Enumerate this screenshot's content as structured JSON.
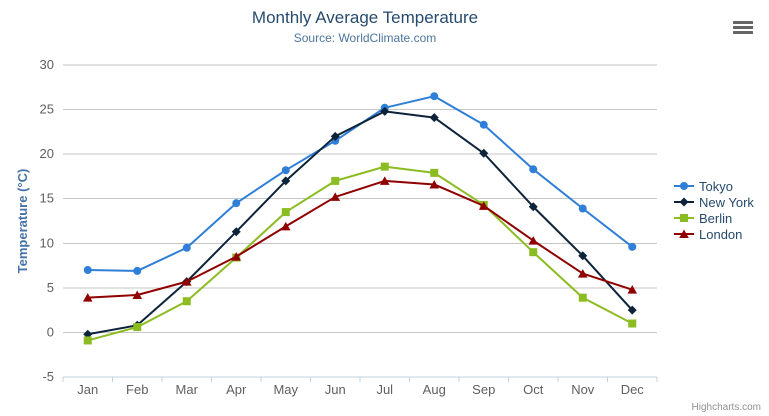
{
  "credits": {
    "label": "Highcharts.com"
  },
  "icons": {
    "export_menu": "hamburger-menu"
  },
  "colors": {
    "background": "#ffffff",
    "title": "#274b6d",
    "subtitle": "#4d759e",
    "axis_title": "#4572A7",
    "axis_labels": "#606060",
    "gridline": "#C6C6C6",
    "axis_line": "#C0D0E0",
    "legend_text": "#274b6d",
    "credits_text": "#909090",
    "menu_icon": "#666666"
  },
  "chart_data": {
    "type": "line",
    "title": "Monthly Average Temperature",
    "subtitle": "Source: WorldClimate.com",
    "categories": [
      "Jan",
      "Feb",
      "Mar",
      "Apr",
      "May",
      "Jun",
      "Jul",
      "Aug",
      "Sep",
      "Oct",
      "Nov",
      "Dec"
    ],
    "series": [
      {
        "name": "Tokyo",
        "color": "#2f7ed8",
        "marker": "circle",
        "values": [
          7.0,
          6.9,
          9.5,
          14.5,
          18.2,
          21.5,
          25.2,
          26.5,
          23.3,
          18.3,
          13.9,
          9.6
        ]
      },
      {
        "name": "New York",
        "color": "#0d233a",
        "marker": "diamond",
        "values": [
          -0.2,
          0.8,
          5.7,
          11.3,
          17.0,
          22.0,
          24.8,
          24.1,
          20.1,
          14.1,
          8.6,
          2.5
        ]
      },
      {
        "name": "Berlin",
        "color": "#8bbc21",
        "marker": "square",
        "values": [
          -0.9,
          0.6,
          3.5,
          8.4,
          13.5,
          17.0,
          18.6,
          17.9,
          14.3,
          9.0,
          3.9,
          1.0
        ]
      },
      {
        "name": "London",
        "color": "#910000",
        "marker": "triangle",
        "values": [
          3.9,
          4.2,
          5.7,
          8.5,
          11.9,
          15.2,
          17.0,
          16.6,
          14.2,
          10.3,
          6.6,
          4.8
        ]
      }
    ],
    "xlabel": "",
    "ylabel": "Temperature (°C)",
    "ylim": [
      -5,
      30
    ],
    "ytick_interval": 5,
    "yticks": [
      -5,
      0,
      5,
      10,
      15,
      20,
      25,
      30
    ],
    "grid": true,
    "legend_position": "right"
  }
}
